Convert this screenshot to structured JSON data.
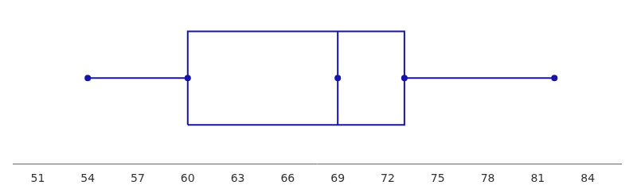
{
  "chart_data": {
    "type": "box",
    "orientation": "horizontal",
    "min": 54,
    "q1": 60,
    "median": 69,
    "q3": 73,
    "max": 82,
    "xlim": [
      49.5,
      86
    ],
    "xticks": [
      51,
      54,
      57,
      60,
      63,
      66,
      69,
      72,
      75,
      78,
      81,
      84
    ],
    "color": "#1414aa",
    "tick_labels": "x",
    "grid": false
  }
}
